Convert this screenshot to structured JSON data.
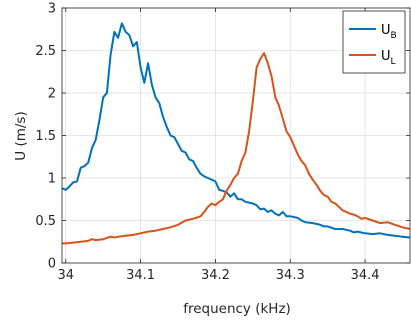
{
  "chart_data": {
    "type": "line",
    "title": "",
    "xlabel": "frequency (kHz)",
    "ylabel": "U (m/s)",
    "xlim": [
      33.995,
      34.46
    ],
    "ylim": [
      0,
      3
    ],
    "xticks": [
      "34",
      "34.1",
      "34.2",
      "34.3",
      "34.4"
    ],
    "xtick_values": [
      34.0,
      34.1,
      34.2,
      34.3,
      34.4
    ],
    "yticks": [
      "0",
      "0.5",
      "1",
      "1.5",
      "2",
      "2.5",
      "3"
    ],
    "ytick_values": [
      0,
      0.5,
      1,
      1.5,
      2,
      2.5,
      3
    ],
    "grid": true,
    "legend_position": "top-right",
    "series": [
      {
        "name": "U",
        "subscript": "B",
        "color": "#0072BD",
        "points": [
          [
            33.995,
            0.88
          ],
          [
            34.0,
            0.86
          ],
          [
            34.005,
            0.9
          ],
          [
            34.01,
            0.95
          ],
          [
            34.015,
            0.96
          ],
          [
            34.02,
            1.12
          ],
          [
            34.025,
            1.14
          ],
          [
            34.03,
            1.18
          ],
          [
            34.035,
            1.35
          ],
          [
            34.04,
            1.45
          ],
          [
            34.045,
            1.68
          ],
          [
            34.05,
            1.95
          ],
          [
            34.055,
            2.0
          ],
          [
            34.06,
            2.45
          ],
          [
            34.065,
            2.72
          ],
          [
            34.07,
            2.65
          ],
          [
            34.075,
            2.82
          ],
          [
            34.08,
            2.72
          ],
          [
            34.085,
            2.68
          ],
          [
            34.09,
            2.55
          ],
          [
            34.095,
            2.6
          ],
          [
            34.1,
            2.3
          ],
          [
            34.105,
            2.12
          ],
          [
            34.11,
            2.35
          ],
          [
            34.115,
            2.1
          ],
          [
            34.12,
            1.95
          ],
          [
            34.125,
            1.88
          ],
          [
            34.13,
            1.72
          ],
          [
            34.135,
            1.6
          ],
          [
            34.14,
            1.5
          ],
          [
            34.145,
            1.48
          ],
          [
            34.15,
            1.4
          ],
          [
            34.155,
            1.32
          ],
          [
            34.16,
            1.3
          ],
          [
            34.165,
            1.22
          ],
          [
            34.17,
            1.2
          ],
          [
            34.175,
            1.12
          ],
          [
            34.18,
            1.05
          ],
          [
            34.185,
            1.02
          ],
          [
            34.19,
            1.0
          ],
          [
            34.2,
            0.96
          ],
          [
            34.205,
            0.86
          ],
          [
            34.21,
            0.85
          ],
          [
            34.215,
            0.83
          ],
          [
            34.22,
            0.78
          ],
          [
            34.225,
            0.82
          ],
          [
            34.23,
            0.75
          ],
          [
            34.235,
            0.75
          ],
          [
            34.24,
            0.72
          ],
          [
            34.25,
            0.7
          ],
          [
            34.255,
            0.68
          ],
          [
            34.26,
            0.63
          ],
          [
            34.265,
            0.64
          ],
          [
            34.27,
            0.6
          ],
          [
            34.275,
            0.62
          ],
          [
            34.28,
            0.58
          ],
          [
            34.285,
            0.56
          ],
          [
            34.29,
            0.6
          ],
          [
            34.295,
            0.55
          ],
          [
            34.3,
            0.55
          ],
          [
            34.31,
            0.53
          ],
          [
            34.315,
            0.5
          ],
          [
            34.32,
            0.48
          ],
          [
            34.33,
            0.47
          ],
          [
            34.335,
            0.46
          ],
          [
            34.34,
            0.45
          ],
          [
            34.345,
            0.43
          ],
          [
            34.35,
            0.43
          ],
          [
            34.36,
            0.4
          ],
          [
            34.37,
            0.4
          ],
          [
            34.38,
            0.38
          ],
          [
            34.385,
            0.36
          ],
          [
            34.39,
            0.37
          ],
          [
            34.4,
            0.35
          ],
          [
            34.41,
            0.34
          ],
          [
            34.42,
            0.35
          ],
          [
            34.43,
            0.33
          ],
          [
            34.44,
            0.32
          ],
          [
            34.45,
            0.31
          ],
          [
            34.46,
            0.3
          ]
        ]
      },
      {
        "name": "U",
        "subscript": "L",
        "color": "#D95319",
        "points": [
          [
            33.995,
            0.23
          ],
          [
            34.0,
            0.23
          ],
          [
            34.01,
            0.24
          ],
          [
            34.02,
            0.25
          ],
          [
            34.03,
            0.26
          ],
          [
            34.035,
            0.28
          ],
          [
            34.04,
            0.27
          ],
          [
            34.05,
            0.28
          ],
          [
            34.06,
            0.31
          ],
          [
            34.065,
            0.3
          ],
          [
            34.07,
            0.31
          ],
          [
            34.08,
            0.32
          ],
          [
            34.09,
            0.33
          ],
          [
            34.1,
            0.35
          ],
          [
            34.11,
            0.37
          ],
          [
            34.12,
            0.38
          ],
          [
            34.13,
            0.4
          ],
          [
            34.14,
            0.42
          ],
          [
            34.15,
            0.45
          ],
          [
            34.16,
            0.5
          ],
          [
            34.17,
            0.52
          ],
          [
            34.18,
            0.55
          ],
          [
            34.185,
            0.6
          ],
          [
            34.19,
            0.66
          ],
          [
            34.195,
            0.7
          ],
          [
            34.2,
            0.68
          ],
          [
            34.205,
            0.72
          ],
          [
            34.21,
            0.75
          ],
          [
            34.215,
            0.85
          ],
          [
            34.22,
            0.92
          ],
          [
            34.225,
            1.0
          ],
          [
            34.23,
            1.05
          ],
          [
            34.235,
            1.2
          ],
          [
            34.24,
            1.3
          ],
          [
            34.245,
            1.55
          ],
          [
            34.25,
            1.9
          ],
          [
            34.255,
            2.3
          ],
          [
            34.26,
            2.4
          ],
          [
            34.265,
            2.47
          ],
          [
            34.27,
            2.35
          ],
          [
            34.275,
            2.2
          ],
          [
            34.28,
            1.95
          ],
          [
            34.285,
            1.85
          ],
          [
            34.29,
            1.7
          ],
          [
            34.295,
            1.55
          ],
          [
            34.3,
            1.48
          ],
          [
            34.305,
            1.38
          ],
          [
            34.31,
            1.28
          ],
          [
            34.315,
            1.2
          ],
          [
            34.32,
            1.15
          ],
          [
            34.325,
            1.05
          ],
          [
            34.33,
            0.98
          ],
          [
            34.335,
            0.92
          ],
          [
            34.34,
            0.85
          ],
          [
            34.345,
            0.8
          ],
          [
            34.35,
            0.78
          ],
          [
            34.355,
            0.72
          ],
          [
            34.36,
            0.7
          ],
          [
            34.365,
            0.66
          ],
          [
            34.37,
            0.62
          ],
          [
            34.375,
            0.6
          ],
          [
            34.38,
            0.58
          ],
          [
            34.385,
            0.57
          ],
          [
            34.39,
            0.55
          ],
          [
            34.395,
            0.52
          ],
          [
            34.4,
            0.53
          ],
          [
            34.41,
            0.5
          ],
          [
            34.42,
            0.47
          ],
          [
            34.43,
            0.48
          ],
          [
            34.44,
            0.45
          ],
          [
            34.45,
            0.42
          ],
          [
            34.46,
            0.4
          ]
        ]
      }
    ]
  }
}
